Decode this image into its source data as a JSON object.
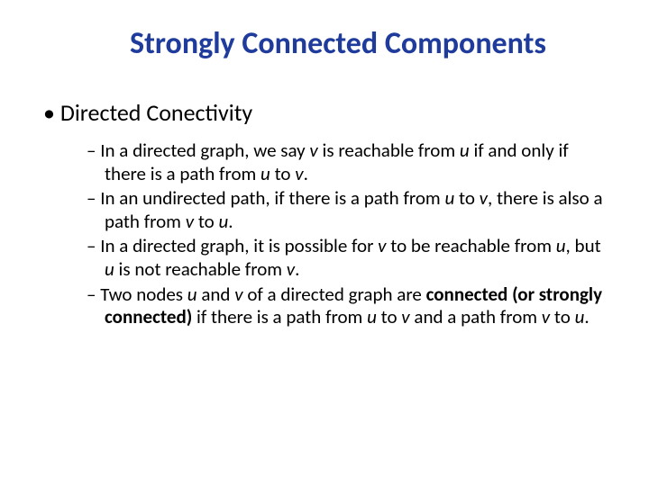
{
  "title": {
    "text": "Strongly Connected Components",
    "color": "#1f3b9b"
  },
  "bullet1": "Directed Conectivity",
  "sub": {
    "a": {
      "p1": "In a directed graph, we say ",
      "v": "v",
      "p2": " is reachable from ",
      "u": "u",
      "p3": " if and only if there is a path from ",
      "u2": "u",
      "p4": " to ",
      "v2": "v",
      "p5": "."
    },
    "b": {
      "p1": "In an undirected path, if there is a path from ",
      "u": "u",
      "p2": " to ",
      "v": "v",
      "p3": ", there is also a path from ",
      "v2": "v",
      "p4": " to ",
      "u2": "u",
      "p5": "."
    },
    "c": {
      "p1": "In a directed graph, it is possible for ",
      "v": "v",
      "p2": " to be reachable from ",
      "u": "u",
      "p3": ", but ",
      "u2": "u",
      "p4": " is not reachable from ",
      "v2": "v",
      "p5": "."
    },
    "d": {
      "p1": "Two nodes ",
      "u": "u",
      "p2": " and ",
      "v": "v",
      "p3": " of a directed graph are ",
      "bold": "connected (or strongly connected) ",
      "p4": " if there is a path from ",
      "u2": "u",
      "p5": " to ",
      "v2": "v",
      "p6": " and a path from ",
      "v3": "v",
      "p7": " to ",
      "u3": "u",
      "p8": "."
    }
  }
}
